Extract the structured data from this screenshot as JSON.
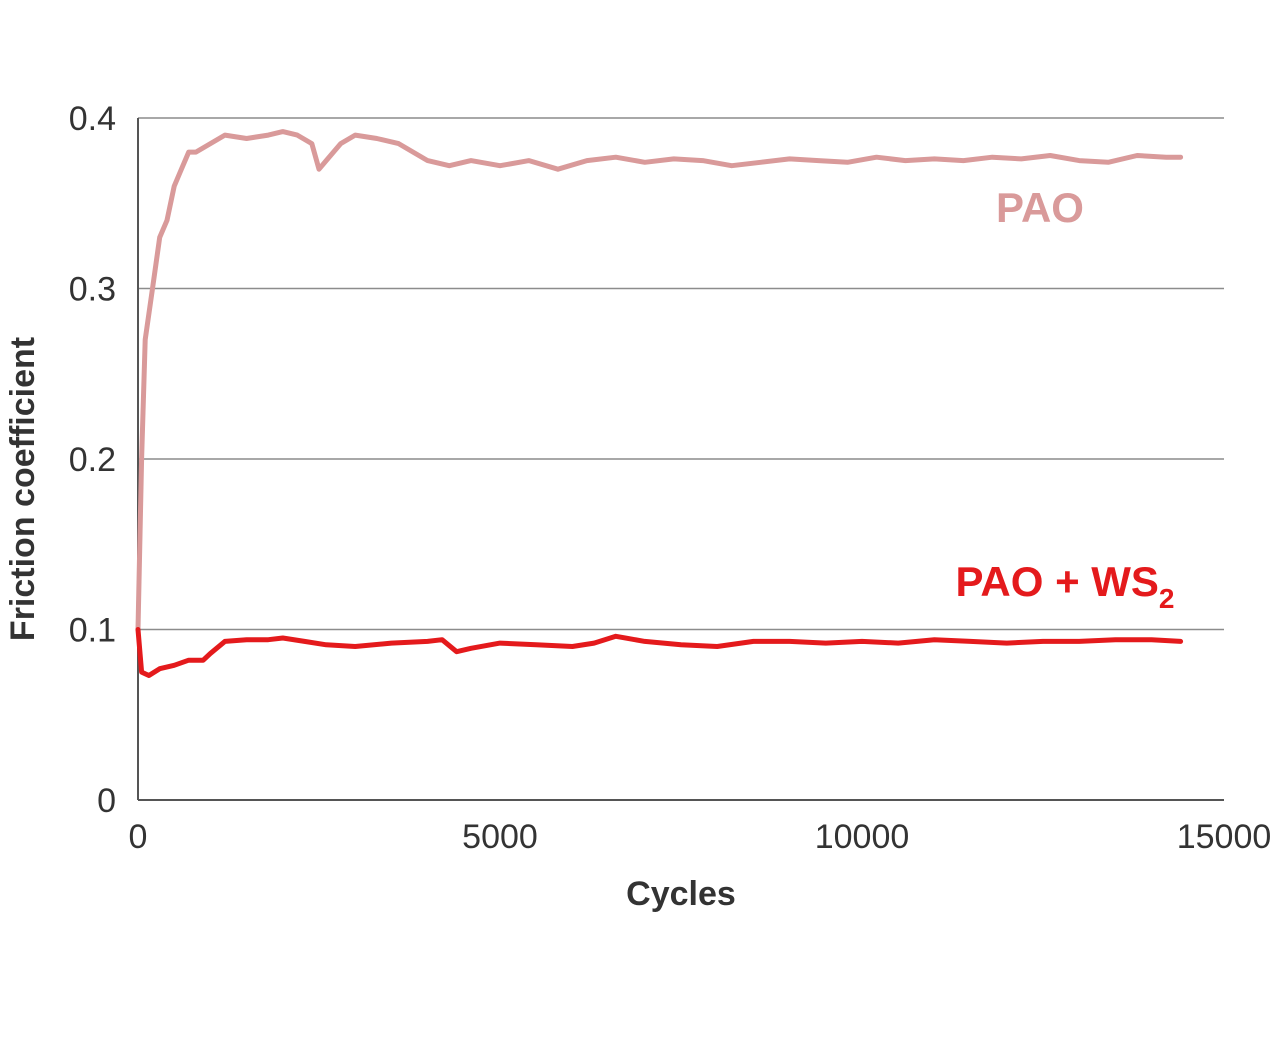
{
  "chart_data": {
    "type": "line",
    "xlabel": "Cycles",
    "ylabel": "Friction coefficient",
    "xlim": [
      0,
      15000
    ],
    "ylim": [
      0,
      0.4
    ],
    "x_ticks": [
      "0",
      "5000",
      "10000",
      "15000"
    ],
    "y_ticks": [
      "0",
      "0.1",
      "0.2",
      "0.3",
      "0.4"
    ],
    "grid": "horizontal",
    "series": [
      {
        "name": "PAO",
        "label_main": "PAO",
        "label_sub": "",
        "color": "#d99a9a",
        "x": [
          0,
          50,
          100,
          200,
          300,
          400,
          500,
          600,
          700,
          800,
          1000,
          1200,
          1500,
          1800,
          2000,
          2200,
          2400,
          2500,
          2600,
          2800,
          3000,
          3300,
          3600,
          3800,
          4000,
          4300,
          4600,
          5000,
          5400,
          5800,
          6200,
          6600,
          7000,
          7400,
          7800,
          8200,
          8600,
          9000,
          9400,
          9800,
          10200,
          10600,
          11000,
          11400,
          11800,
          12200,
          12600,
          13000,
          13400,
          13800,
          14200,
          14400
        ],
        "y": [
          0.1,
          0.2,
          0.27,
          0.3,
          0.33,
          0.34,
          0.36,
          0.37,
          0.38,
          0.38,
          0.385,
          0.39,
          0.388,
          0.39,
          0.392,
          0.39,
          0.385,
          0.37,
          0.375,
          0.385,
          0.39,
          0.388,
          0.385,
          0.38,
          0.375,
          0.372,
          0.375,
          0.372,
          0.375,
          0.37,
          0.375,
          0.377,
          0.374,
          0.376,
          0.375,
          0.372,
          0.374,
          0.376,
          0.375,
          0.374,
          0.377,
          0.375,
          0.376,
          0.375,
          0.377,
          0.376,
          0.378,
          0.375,
          0.374,
          0.378,
          0.377,
          0.377
        ]
      },
      {
        "name": "PAO + WS2",
        "label_main": "PAO + WS",
        "label_sub": "2",
        "color": "#e41a1c",
        "x": [
          0,
          50,
          150,
          300,
          500,
          700,
          900,
          1000,
          1200,
          1500,
          1800,
          2000,
          2300,
          2600,
          3000,
          3500,
          4000,
          4200,
          4400,
          4600,
          5000,
          5500,
          6000,
          6300,
          6600,
          7000,
          7500,
          8000,
          8500,
          9000,
          9500,
          10000,
          10500,
          11000,
          11500,
          12000,
          12500,
          13000,
          13500,
          14000,
          14400
        ],
        "y": [
          0.1,
          0.075,
          0.073,
          0.077,
          0.079,
          0.082,
          0.082,
          0.086,
          0.093,
          0.094,
          0.094,
          0.095,
          0.093,
          0.091,
          0.09,
          0.092,
          0.093,
          0.094,
          0.087,
          0.089,
          0.092,
          0.091,
          0.09,
          0.092,
          0.096,
          0.093,
          0.091,
          0.09,
          0.093,
          0.093,
          0.092,
          0.093,
          0.092,
          0.094,
          0.093,
          0.092,
          0.093,
          0.093,
          0.094,
          0.094,
          0.093
        ]
      }
    ]
  }
}
